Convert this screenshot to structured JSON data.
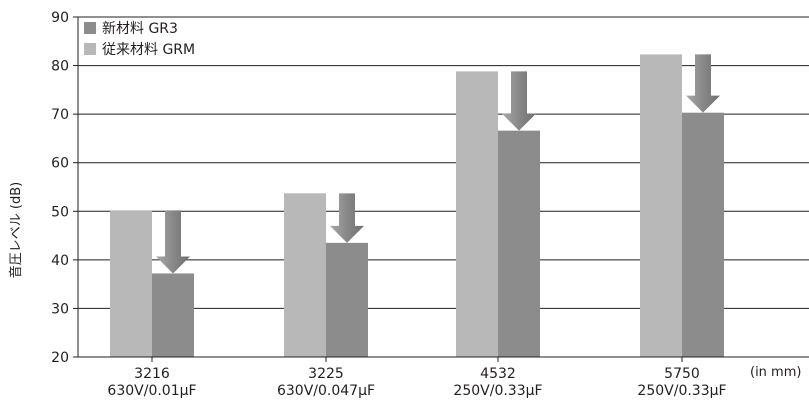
{
  "chart_data": {
    "type": "bar",
    "ylabel": "音圧レベル (dB)",
    "unit_note": "(in mm)",
    "ylim": [
      20,
      90
    ],
    "yticks": [
      "20",
      "30",
      "40",
      "50",
      "60",
      "70",
      "80",
      "90"
    ],
    "grid": true,
    "legend_position": "top-left",
    "categories": [
      {
        "size": "3216",
        "rating": "630V/0.01μF"
      },
      {
        "size": "3225",
        "rating": "630V/0.047μF"
      },
      {
        "size": "4532",
        "rating": "250V/0.33μF"
      },
      {
        "size": "5750",
        "rating": "250V/0.33μF"
      }
    ],
    "series": [
      {
        "name": "従来材料 GRM",
        "color": "#b8b8b8",
        "values": [
          50.2,
          53.7,
          78.8,
          82.3
        ]
      },
      {
        "name": "新材料 GR3",
        "color": "#8c8c8c",
        "values": [
          37.2,
          43.5,
          66.6,
          70.3
        ]
      }
    ],
    "legend": [
      {
        "label": "新材料 GR3",
        "color": "#8c8c8c"
      },
      {
        "label": "従来材料 GRM",
        "color": "#b8b8b8"
      }
    ],
    "arrow_color": "#888888",
    "axis_color": "#231f20"
  }
}
